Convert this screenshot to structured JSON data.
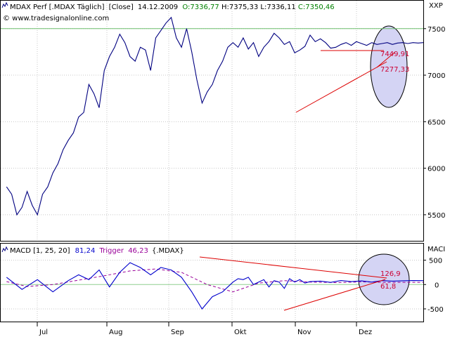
{
  "header": {
    "instrument": "MDAX Perf [.MDAX Täglich]",
    "mode": "[Close]",
    "date": "14.12.2009",
    "open": "O:7336,77",
    "high": "H:7375,33",
    "low": "L:7336,11",
    "close": "C:7350,46",
    "watermark": "© www.tradesignalonline.com"
  },
  "price_panel": {
    "axis_label": "XXP",
    "annotation_upper": "7449,91",
    "annotation_lower": "7277,33"
  },
  "macd_panel": {
    "title": "MACD [1, 25, 20]",
    "macd_value": "81,24",
    "trigger_label": "Trigger",
    "trigger_value": "46,23",
    "symbol": "{.MDAX}",
    "axis_label": "MACI",
    "annotation_upper": "126,9",
    "annotation_lower": "61,8"
  },
  "colors": {
    "price_line": "#000080",
    "macd_line": "#0000cc",
    "trigger_line": "#990099",
    "trend_line": "#dd0000",
    "highlight_fill": "#d4d4f4",
    "annotation_text": "#cc0033",
    "header_value": "#008000",
    "grid": "#c8c8c8"
  },
  "chart_data": [
    {
      "type": "line",
      "title": "MDAX Perf [.MDAX Täglich]",
      "x_ticks": [
        "Jul",
        "Aug",
        "Sep",
        "Okt",
        "Nov",
        "Dez"
      ],
      "y_ticks": [
        5500,
        6000,
        6500,
        7000,
        7500
      ],
      "ylim": [
        5220,
        7800
      ],
      "reference_line": 7500,
      "grid": true,
      "series": [
        {
          "name": "Close",
          "x": [
            2,
            4,
            6,
            8,
            10,
            12,
            14,
            16,
            18,
            20,
            22,
            24,
            26,
            28,
            30,
            32,
            34,
            36,
            38,
            40,
            42,
            44,
            46,
            48,
            50,
            52,
            54,
            56,
            58,
            60,
            62,
            64,
            66,
            68,
            70,
            72,
            74,
            76,
            78,
            80,
            82,
            84,
            86,
            88,
            90,
            92,
            94,
            96,
            98,
            100,
            102,
            104,
            106,
            108,
            110,
            112,
            114,
            116,
            118,
            120,
            122,
            124,
            126,
            128,
            130,
            132,
            134,
            136,
            138,
            140,
            142,
            144,
            146,
            148,
            150,
            152,
            154,
            156,
            158,
            160,
            162,
            164
          ],
          "values": [
            5800,
            5720,
            5500,
            5580,
            5750,
            5600,
            5500,
            5720,
            5800,
            5950,
            6050,
            6200,
            6300,
            6380,
            6550,
            6600,
            6900,
            6800,
            6650,
            7050,
            7200,
            7300,
            7440,
            7350,
            7200,
            7150,
            7300,
            7270,
            7050,
            7400,
            7480,
            7560,
            7620,
            7400,
            7300,
            7500,
            7250,
            6950,
            6700,
            6820,
            6900,
            7050,
            7150,
            7300,
            7350,
            7300,
            7400,
            7280,
            7350,
            7200,
            7300,
            7360,
            7450,
            7400,
            7330,
            7360,
            7240,
            7270,
            7310,
            7430,
            7360,
            7390,
            7350,
            7290,
            7300,
            7330,
            7350,
            7320,
            7360,
            7340,
            7320,
            7350,
            7330,
            7340,
            7350,
            7330,
            7345,
            7350,
            7340,
            7350,
            7345,
            7350
          ]
        }
      ]
    },
    {
      "type": "line",
      "title": "MACD [1, 25, 20]",
      "x_ticks": [
        "Jul",
        "Aug",
        "Sep",
        "Okt",
        "Nov",
        "Dez"
      ],
      "y_ticks": [
        -500,
        0,
        500
      ],
      "ylim": [
        -760,
        840
      ],
      "grid": true,
      "series": [
        {
          "name": "MACD",
          "x": [
            2,
            8,
            14,
            20,
            26,
            30,
            34,
            38,
            42,
            46,
            50,
            54,
            58,
            62,
            66,
            70,
            74,
            78,
            82,
            86,
            88,
            90,
            92,
            94,
            96,
            98,
            100,
            102,
            104,
            106,
            108,
            110,
            112,
            114,
            116,
            118,
            120,
            124,
            128,
            132,
            136,
            140,
            144,
            148,
            152,
            156,
            160,
            164
          ],
          "values": [
            150,
            -100,
            100,
            -150,
            80,
            200,
            100,
            300,
            -50,
            250,
            450,
            350,
            200,
            350,
            300,
            150,
            -150,
            -500,
            -250,
            -150,
            -50,
            50,
            120,
            100,
            150,
            0,
            50,
            100,
            -50,
            80,
            50,
            -80,
            120,
            50,
            100,
            30,
            60,
            70,
            45,
            82,
            60,
            75,
            50,
            80,
            70,
            78,
            82,
            81
          ],
          "color": "#0000cc"
        },
        {
          "name": "Trigger",
          "x": [
            2,
            10,
            20,
            30,
            40,
            50,
            60,
            70,
            80,
            90,
            100,
            110,
            120,
            130,
            140,
            150,
            160,
            164
          ],
          "values": [
            60,
            -40,
            0,
            90,
            180,
            280,
            320,
            250,
            0,
            -150,
            30,
            80,
            50,
            40,
            55,
            45,
            46,
            46
          ],
          "color": "#990099"
        }
      ]
    }
  ]
}
